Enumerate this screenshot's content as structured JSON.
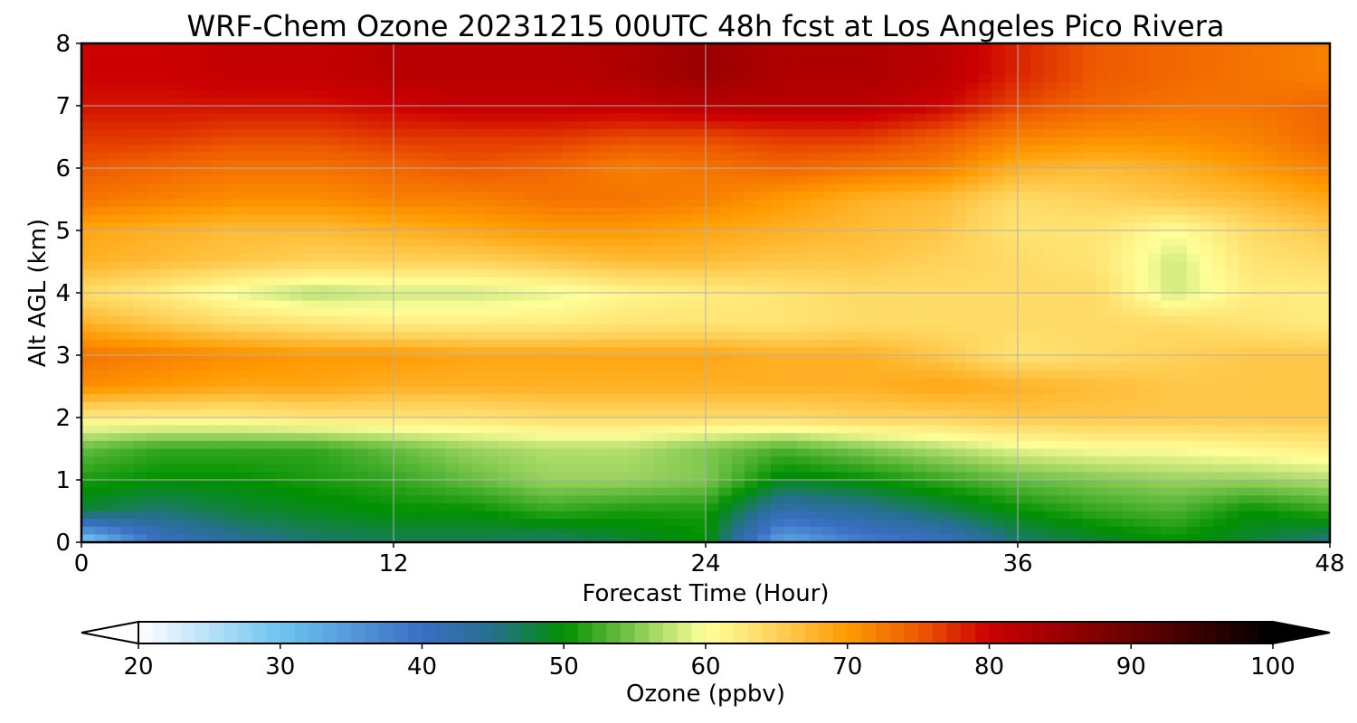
{
  "chart_data": {
    "type": "heatmap",
    "title": "WRF-Chem Ozone  20231215 00UTC 48h fcst at Los Angeles Pico Rivera",
    "xlabel": "Forecast Time (Hour)",
    "ylabel": "Alt AGL (km)",
    "xlim": [
      0,
      48
    ],
    "ylim": [
      0,
      8
    ],
    "xticks": [
      0,
      12,
      24,
      36,
      48
    ],
    "yticks": [
      0,
      1,
      2,
      3,
      4,
      5,
      6,
      7,
      8
    ],
    "grid": true,
    "x": [
      0,
      3,
      6,
      9,
      12,
      15,
      18,
      21,
      24,
      27,
      30,
      33,
      36,
      39,
      42,
      45,
      48
    ],
    "y": [
      0,
      0.5,
      1,
      1.5,
      2,
      2.5,
      3,
      3.5,
      4,
      4.5,
      5,
      5.5,
      6,
      6.5,
      7,
      7.5,
      8
    ],
    "z": [
      [
        28,
        40,
        44,
        46,
        47,
        47,
        46,
        48,
        50,
        33,
        38,
        40,
        46,
        48,
        50,
        48,
        45
      ],
      [
        48,
        46,
        48,
        49,
        50,
        50,
        52,
        51,
        51,
        42,
        44,
        47,
        50,
        52,
        53,
        50,
        52
      ],
      [
        51,
        50,
        50,
        51,
        52,
        54,
        56,
        56,
        55,
        49,
        50,
        52,
        54,
        55,
        56,
        56,
        57
      ],
      [
        54,
        52,
        52,
        52,
        54,
        56,
        57,
        57,
        55,
        53,
        55,
        57,
        59,
        60,
        60,
        61,
        62
      ],
      [
        62,
        62,
        62,
        63,
        63,
        63,
        64,
        64,
        64,
        64,
        65,
        65,
        66,
        66,
        66,
        66,
        66
      ],
      [
        71,
        70,
        69,
        69,
        68,
        68,
        68,
        68,
        68,
        68,
        68,
        69,
        68,
        67,
        66,
        66,
        66
      ],
      [
        73,
        72,
        71,
        70,
        70,
        69,
        69,
        69,
        69,
        68,
        68,
        66,
        63,
        64,
        65,
        66,
        66
      ],
      [
        68,
        66,
        64,
        63,
        62,
        62,
        62,
        63,
        63,
        63,
        64,
        64,
        64,
        64,
        64,
        63,
        62
      ],
      [
        64,
        62,
        59,
        57,
        58,
        58,
        59,
        61,
        62,
        63,
        64,
        64,
        64,
        64,
        58,
        62,
        62
      ],
      [
        68,
        67,
        66,
        65,
        65,
        65,
        66,
        67,
        67,
        66,
        66,
        65,
        64,
        63,
        58,
        63,
        64
      ],
      [
        69,
        68,
        67,
        67,
        68,
        69,
        70,
        70,
        69,
        68,
        67,
        66,
        63,
        63,
        60,
        64,
        66
      ],
      [
        73,
        72,
        71,
        71,
        72,
        72,
        73,
        73,
        72,
        70,
        68,
        67,
        64,
        65,
        66,
        67,
        69
      ],
      [
        75,
        74,
        73,
        73,
        74,
        75,
        74,
        72,
        73,
        74,
        73,
        72,
        68,
        67,
        68,
        70,
        72
      ],
      [
        77,
        77,
        76,
        76,
        77,
        77,
        77,
        76,
        76,
        77,
        77,
        75,
        72,
        71,
        71,
        72,
        74
      ],
      [
        79,
        79,
        79,
        79,
        80,
        81,
        81,
        81,
        82,
        82,
        82,
        80,
        76,
        74,
        73,
        73,
        74
      ],
      [
        80,
        80,
        81,
        81,
        82,
        82,
        82,
        83,
        85,
        83,
        83,
        82,
        78,
        75,
        74,
        73,
        72
      ],
      [
        80,
        80,
        81,
        81,
        82,
        82,
        82,
        83,
        85,
        83,
        83,
        82,
        78,
        75,
        74,
        73,
        72
      ]
    ],
    "colorbar": {
      "label": "Ozone  (ppbv)",
      "min": 20,
      "max": 100,
      "ticks": [
        20,
        30,
        40,
        50,
        60,
        70,
        80,
        90,
        100
      ],
      "extend": "both",
      "stops": [
        {
          "v": 20,
          "c": "#ffffff"
        },
        {
          "v": 30,
          "c": "#6ec4f0"
        },
        {
          "v": 40,
          "c": "#3a6ec4"
        },
        {
          "v": 45,
          "c": "#26708e"
        },
        {
          "v": 50,
          "c": "#009000"
        },
        {
          "v": 55,
          "c": "#80c850"
        },
        {
          "v": 60,
          "c": "#ffff99"
        },
        {
          "v": 65,
          "c": "#ffd25a"
        },
        {
          "v": 70,
          "c": "#ff9a00"
        },
        {
          "v": 75,
          "c": "#ee5a00"
        },
        {
          "v": 80,
          "c": "#cc0000"
        },
        {
          "v": 90,
          "c": "#6a0000"
        },
        {
          "v": 100,
          "c": "#000000"
        }
      ]
    }
  }
}
